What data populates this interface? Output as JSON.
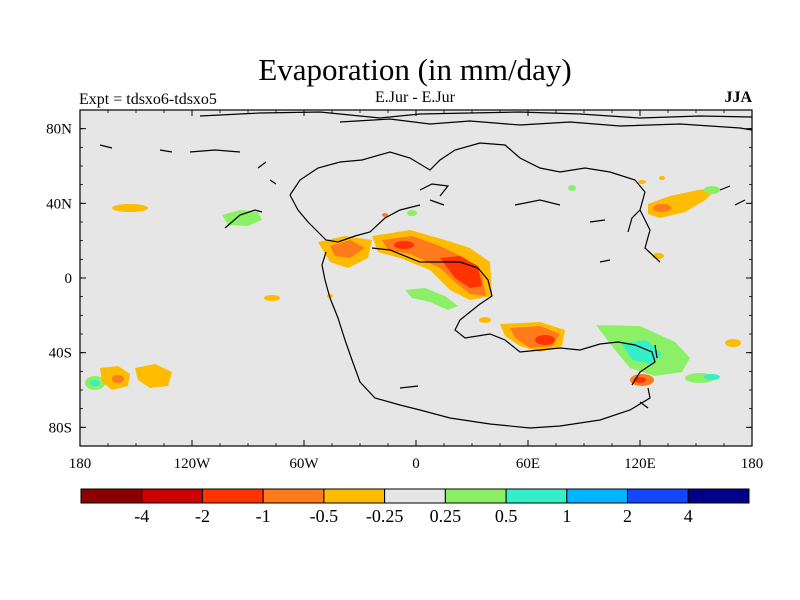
{
  "header": {
    "title": "Evaporation (in mm/day)",
    "left_label": "Expt = tdsxo6-tdsxo5",
    "center_label": "E.Jur - E.Jur",
    "right_label": "JJA"
  },
  "axes": {
    "lat_ticks": [
      {
        "value": 80,
        "label": "80N"
      },
      {
        "value": 40,
        "label": "40N"
      },
      {
        "value": 0,
        "label": "0"
      },
      {
        "value": -40,
        "label": "40S"
      },
      {
        "value": -80,
        "label": "80S"
      }
    ],
    "lon_ticks": [
      {
        "value": -180,
        "label": "180"
      },
      {
        "value": -120,
        "label": "120W"
      },
      {
        "value": -60,
        "label": "60W"
      },
      {
        "value": 0,
        "label": "0"
      },
      {
        "value": 60,
        "label": "60E"
      },
      {
        "value": 120,
        "label": "120E"
      },
      {
        "value": 180,
        "label": "180"
      }
    ],
    "lon_range": [
      -180,
      180
    ],
    "lat_range": [
      -90,
      90
    ]
  },
  "colorbar": {
    "colors": [
      "#8b0000",
      "#cd0000",
      "#ff3300",
      "#ff7a1a",
      "#ffbb00",
      "#e6e6e6",
      "#8cf066",
      "#33f0c8",
      "#00b4ff",
      "#1446ff",
      "#00008b"
    ],
    "labels": [
      "-4",
      "-2",
      "-1",
      "-0.5",
      "-0.25",
      "0.25",
      "0.5",
      "1",
      "2",
      "4"
    ]
  },
  "colors": {
    "background": "#e6e6e6",
    "coast": "#000000"
  },
  "chart_data": {
    "type": "heatmap",
    "title": "Evaporation (in mm/day)",
    "subtitle": "E.Jur - E.Jur",
    "season": "JJA",
    "experiment": "Expt = tdsxo6-tdsxo5",
    "xlim": [
      -180,
      180
    ],
    "ylim": [
      -90,
      90
    ],
    "anomalies": [
      {
        "lon": -150,
        "lat": 38,
        "category": "-0.5 to -0.25"
      },
      {
        "lon": -92,
        "lat": 33,
        "category": "0.25 to 0.5"
      },
      {
        "lon": -35,
        "lat": 15,
        "category": "-1 to -0.5"
      },
      {
        "lon": -5,
        "lat": 15,
        "category": "-1 to -0.5"
      },
      {
        "lon": 25,
        "lat": 5,
        "category": "-2 to -1"
      },
      {
        "lon": 5,
        "lat": -10,
        "category": "0.25 to 0.5"
      },
      {
        "lon": 65,
        "lat": -31,
        "category": "-2 to -1"
      },
      {
        "lon": 118,
        "lat": -38,
        "category": "0.5 to 1"
      },
      {
        "lon": 155,
        "lat": -52,
        "category": "1 to 2"
      },
      {
        "lon": 120,
        "lat": -55,
        "category": "-2 to -1"
      },
      {
        "lon": -170,
        "lat": -52,
        "category": "-1 to -0.5"
      },
      {
        "lon": -148,
        "lat": -52,
        "category": "-0.5 to -0.25"
      },
      {
        "lon": 130,
        "lat": 40,
        "category": "-1 to -0.5"
      },
      {
        "lon": 138,
        "lat": 45,
        "category": "0.25 to 0.5"
      }
    ]
  }
}
